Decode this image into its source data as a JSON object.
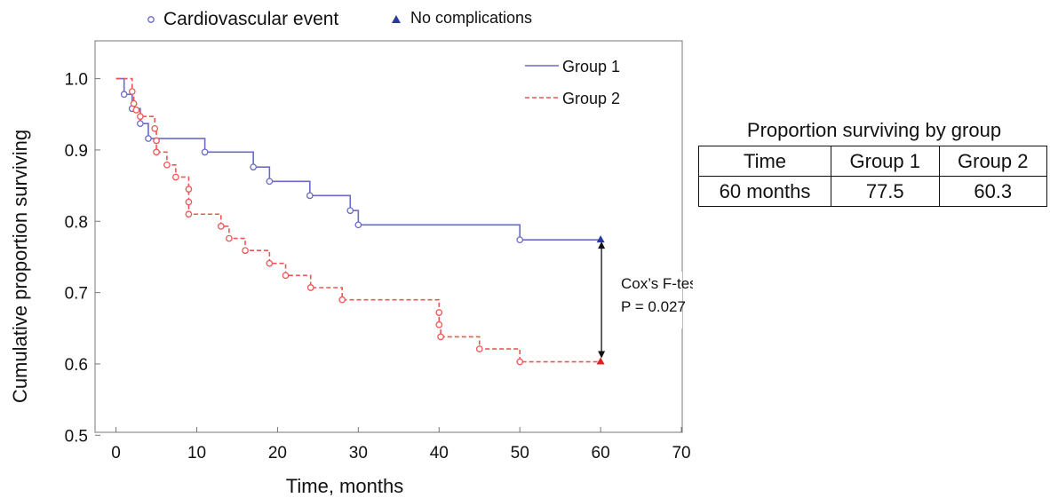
{
  "chart_data": {
    "type": "line",
    "xlabel": "Time, months",
    "ylabel": "Cumulative proportion surviving",
    "xlim": [
      0,
      70
    ],
    "ylim": [
      0.5,
      1.0
    ],
    "x_ticks": [
      "0",
      "10",
      "20",
      "30",
      "40",
      "50",
      "60",
      "70"
    ],
    "y_ticks": [
      "0.5",
      "0.6",
      "0.7",
      "0.8",
      "0.9",
      "1.0"
    ],
    "grid": false,
    "markers": [
      {
        "label": "Cardiovascular event",
        "shape": "circle"
      },
      {
        "label": "No complications",
        "shape": "triangle"
      }
    ],
    "series": [
      {
        "name": "Group 1",
        "color": "#6a6ac8",
        "style": "solid",
        "steps": [
          [
            0,
            1.0
          ],
          [
            1,
            0.978
          ],
          [
            2,
            0.958
          ],
          [
            3,
            0.937
          ],
          [
            4,
            0.916
          ],
          [
            11,
            0.897
          ],
          [
            17,
            0.876
          ],
          [
            19,
            0.856
          ],
          [
            24,
            0.836
          ],
          [
            29,
            0.815
          ],
          [
            30,
            0.795
          ],
          [
            50,
            0.774
          ],
          [
            60,
            0.774
          ]
        ],
        "events": [
          [
            1,
            0.978
          ],
          [
            2,
            0.958
          ],
          [
            3,
            0.937
          ],
          [
            4,
            0.916
          ],
          [
            11,
            0.897
          ],
          [
            17,
            0.876
          ],
          [
            19,
            0.856
          ],
          [
            24,
            0.836
          ],
          [
            29,
            0.815
          ],
          [
            30,
            0.795
          ],
          [
            50,
            0.774
          ]
        ],
        "censored": [
          [
            60,
            0.774
          ]
        ]
      },
      {
        "name": "Group 2",
        "color": "#f05555",
        "style": "dashed",
        "steps": [
          [
            0,
            1.0
          ],
          [
            2,
            0.982
          ],
          [
            2.2,
            0.965
          ],
          [
            2.5,
            0.956
          ],
          [
            3,
            0.947
          ],
          [
            4.8,
            0.93
          ],
          [
            5,
            0.913
          ],
          [
            5,
            0.897
          ],
          [
            6.3,
            0.879
          ],
          [
            7.4,
            0.862
          ],
          [
            9,
            0.845
          ],
          [
            9,
            0.827
          ],
          [
            9,
            0.81
          ],
          [
            13,
            0.793
          ],
          [
            14,
            0.776
          ],
          [
            16,
            0.759
          ],
          [
            19,
            0.741
          ],
          [
            21,
            0.724
          ],
          [
            24.1,
            0.707
          ],
          [
            28,
            0.69
          ],
          [
            40,
            0.672
          ],
          [
            40,
            0.655
          ],
          [
            40.2,
            0.638
          ],
          [
            45,
            0.621
          ],
          [
            50,
            0.603
          ],
          [
            60,
            0.603
          ]
        ],
        "events": [
          [
            2,
            0.982
          ],
          [
            2.2,
            0.965
          ],
          [
            2.5,
            0.956
          ],
          [
            3,
            0.947
          ],
          [
            4.8,
            0.93
          ],
          [
            5,
            0.913
          ],
          [
            5,
            0.897
          ],
          [
            6.3,
            0.879
          ],
          [
            7.4,
            0.862
          ],
          [
            9,
            0.845
          ],
          [
            9,
            0.827
          ],
          [
            9,
            0.81
          ],
          [
            13,
            0.793
          ],
          [
            14,
            0.776
          ],
          [
            16,
            0.759
          ],
          [
            19,
            0.741
          ],
          [
            21,
            0.724
          ],
          [
            24.1,
            0.707
          ],
          [
            28,
            0.69
          ],
          [
            40,
            0.672
          ],
          [
            40,
            0.655
          ],
          [
            40.2,
            0.638
          ],
          [
            45,
            0.621
          ],
          [
            50,
            0.603
          ]
        ],
        "censored": [
          [
            60,
            0.603
          ]
        ]
      }
    ],
    "comparison": {
      "x": 60,
      "y_from": 0.774,
      "y_to": 0.603,
      "line1": "Cox’s F-test",
      "line2": "P = 0.027"
    }
  },
  "summary_table": {
    "title": "Proportion surviving by group",
    "headers": [
      "Time",
      "Group 1",
      "Group 2"
    ],
    "rows": [
      [
        "60 months",
        "77.5",
        "60.3"
      ]
    ]
  }
}
